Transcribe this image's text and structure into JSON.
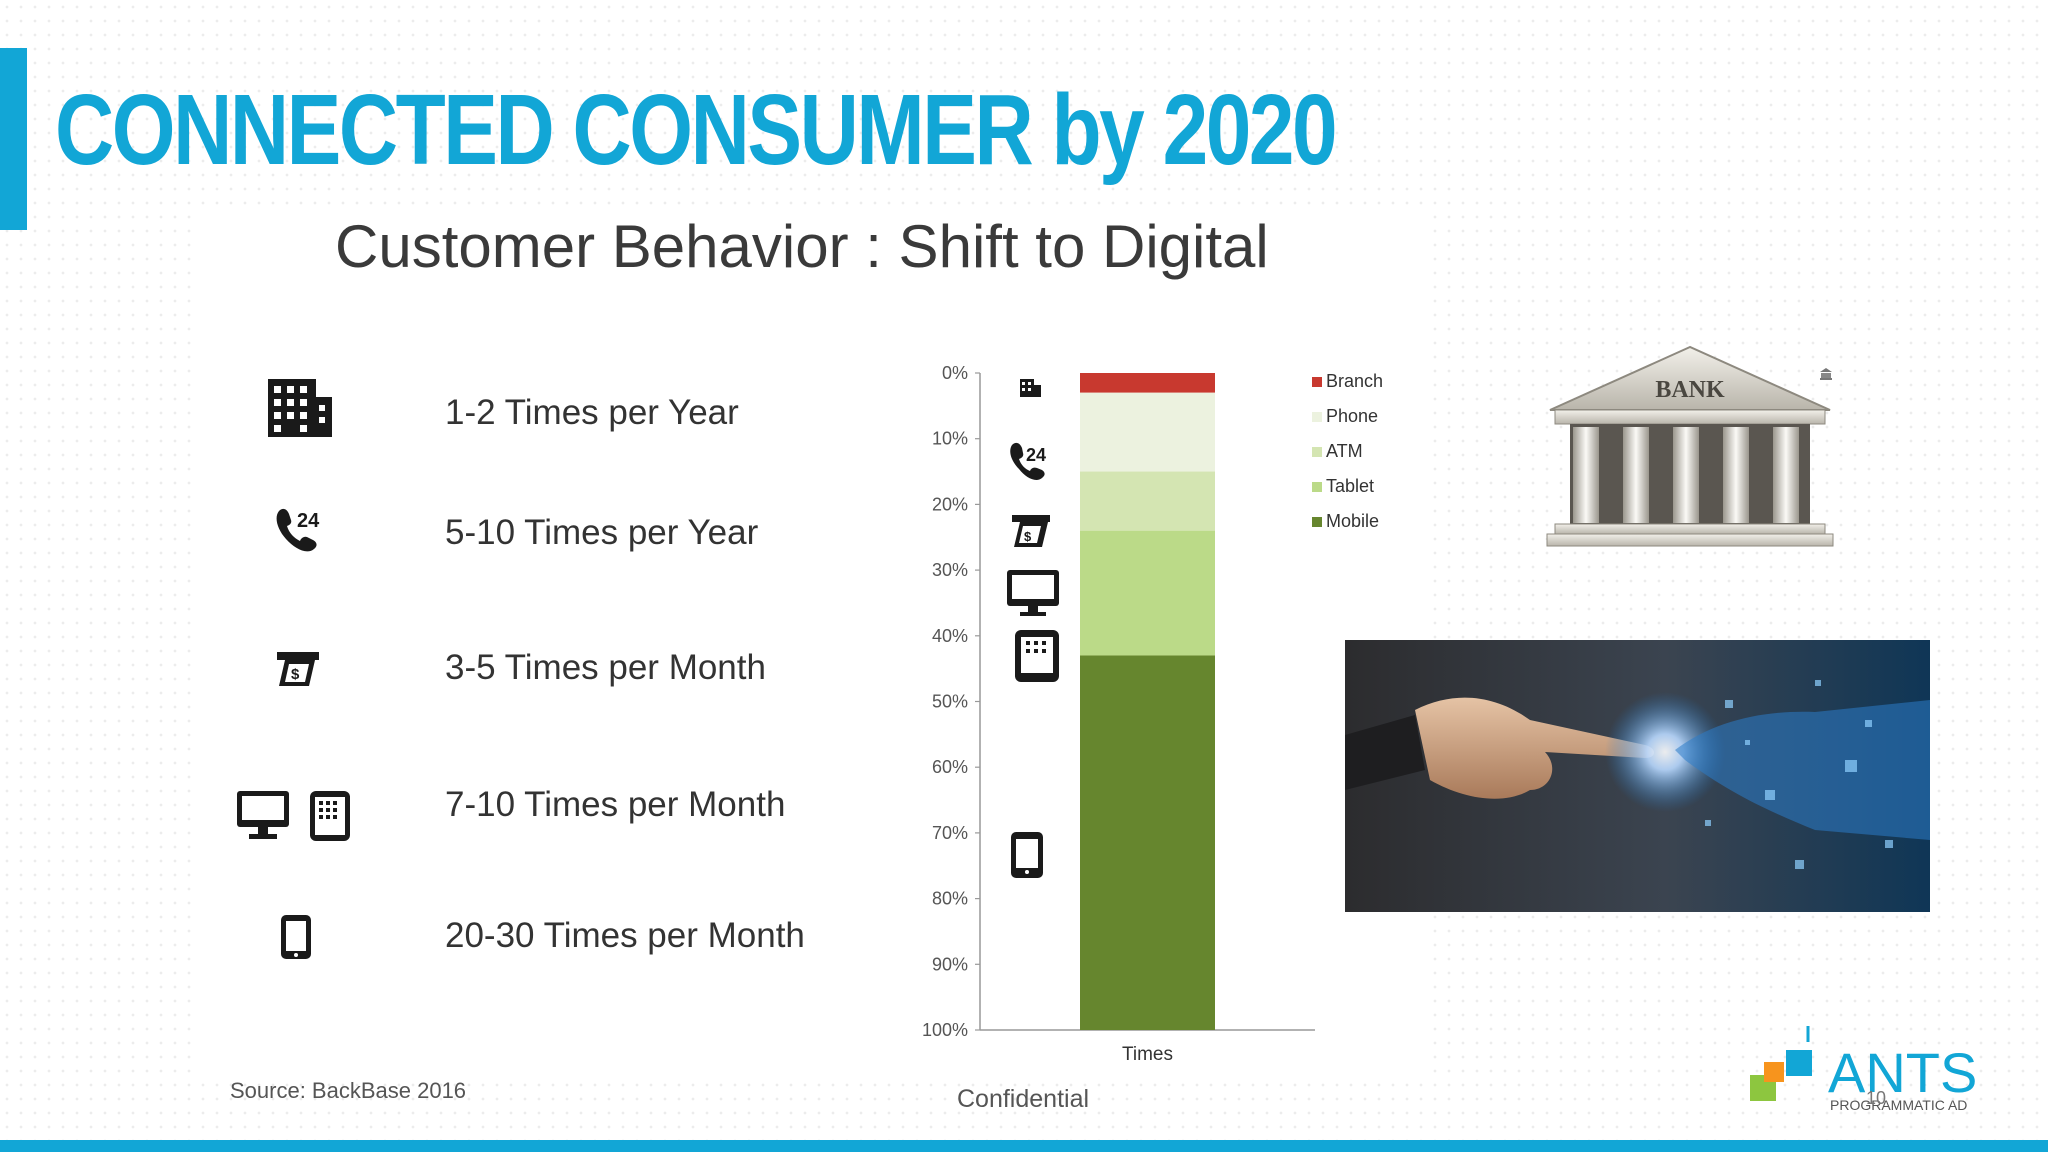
{
  "slide": {
    "title": "CONNECTED CONSUMER by 2020",
    "subtitle": "Customer Behavior : Shift to Digital",
    "source": "Source: BackBase 2016",
    "confidential": "Confidential",
    "page_number": "10",
    "accent_color": "#12a6d6"
  },
  "behaviors": [
    {
      "icon": "building-icon",
      "label": "1-2 Times per Year"
    },
    {
      "icon": "phone-24-icon",
      "label": "5-10 Times per Year"
    },
    {
      "icon": "atm-icon",
      "label": "3-5 Times per Month"
    },
    {
      "icon": "monitor-tablet-icon",
      "label": "7-10 Times per Month"
    },
    {
      "icon": "mobile-icon",
      "label": "20-30 Times per Month"
    }
  ],
  "chart_data": {
    "type": "bar",
    "stacked": true,
    "categories": [
      "Times"
    ],
    "series": [
      {
        "name": "Branch",
        "values": [
          3
        ],
        "color": "#c8392f"
      },
      {
        "name": "Phone",
        "values": [
          12
        ],
        "color": "#ecf2df"
      },
      {
        "name": "ATM",
        "values": [
          9
        ],
        "color": "#d4e5b2"
      },
      {
        "name": "Tablet",
        "values": [
          19
        ],
        "color": "#bbda88"
      },
      {
        "name": "Mobile",
        "values": [
          57
        ],
        "color": "#66862e"
      }
    ],
    "y_ticks": [
      "0%",
      "10%",
      "20%",
      "30%",
      "40%",
      "50%",
      "60%",
      "70%",
      "80%",
      "90%",
      "100%"
    ],
    "ylim": [
      0,
      100
    ],
    "y_inverted": true,
    "legend": "right",
    "grid": false
  },
  "images": {
    "bank_label": "BANK",
    "logo_text": "ANTS",
    "logo_sub": "PROGRAMMATIC AD"
  }
}
